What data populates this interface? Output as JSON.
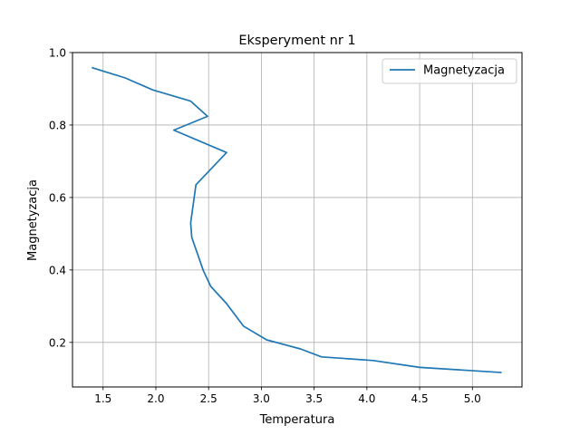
{
  "chart_data": {
    "type": "line",
    "title": "Eksperyment nr 1",
    "xlabel": "Temperatura",
    "ylabel": "Magnetyzacja",
    "xlim": [
      1.21,
      5.47
    ],
    "ylim": [
      0.077,
      1.0
    ],
    "xticks": [
      1.5,
      2.0,
      2.5,
      3.0,
      3.5,
      4.0,
      4.5,
      5.0
    ],
    "xtick_labels": [
      "1.5",
      "2.0",
      "2.5",
      "3.0",
      "3.5",
      "4.0",
      "4.5",
      "5.0"
    ],
    "yticks": [
      0.2,
      0.4,
      0.6,
      0.8,
      1.0
    ],
    "ytick_labels": [
      "0.2",
      "0.4",
      "0.6",
      "0.8",
      "1.0"
    ],
    "grid": true,
    "legend_position": "top-right",
    "series": [
      {
        "name": "Magnetyzacja",
        "color": "#1f77b4",
        "x": [
          1.4,
          1.71,
          1.97,
          2.33,
          2.49,
          2.17,
          2.67,
          2.38,
          2.33,
          2.34,
          2.45,
          2.52,
          2.67,
          2.83,
          3.05,
          3.37,
          3.57,
          4.06,
          4.5,
          5.27
        ],
        "y": [
          0.958,
          0.93,
          0.897,
          0.866,
          0.824,
          0.786,
          0.724,
          0.635,
          0.53,
          0.49,
          0.398,
          0.355,
          0.307,
          0.245,
          0.207,
          0.182,
          0.16,
          0.15,
          0.131,
          0.117
        ]
      }
    ]
  }
}
